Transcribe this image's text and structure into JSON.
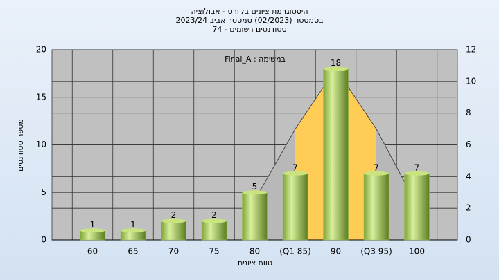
{
  "chart_data": {
    "type": "bar",
    "title_lines": [
      "היסטוגרמת ציונים בקורס - אבולוציה",
      "בסמסטר  (02/2023)  סמסטר אביב 2023/24",
      "סטודנטים רשומים - 74"
    ],
    "annotation": "Final_A : במשימה",
    "x_label": "טווח ציונים",
    "y_label": "מספר סטודנטים",
    "categories": [
      "60",
      "65",
      "70",
      "75",
      "80",
      "(Q1 85)",
      "90",
      "(Q3 95)",
      "100"
    ],
    "values": [
      1,
      1,
      2,
      2,
      5,
      7,
      18,
      7,
      7
    ],
    "color": "#9bc24a",
    "ylim": [
      0,
      20
    ],
    "yticks": [
      0,
      5,
      10,
      15,
      20
    ],
    "y2lim": [
      0,
      12
    ],
    "y2ticks": [
      0,
      2,
      4,
      6,
      8,
      10,
      12
    ],
    "curve": {
      "axis": "y2",
      "values": [
        null,
        null,
        null,
        null,
        2.5,
        7,
        10.8,
        7,
        2.2
      ],
      "fill": "#ffcc55",
      "tail_fill": "#b8b8b8"
    },
    "grid": true
  }
}
